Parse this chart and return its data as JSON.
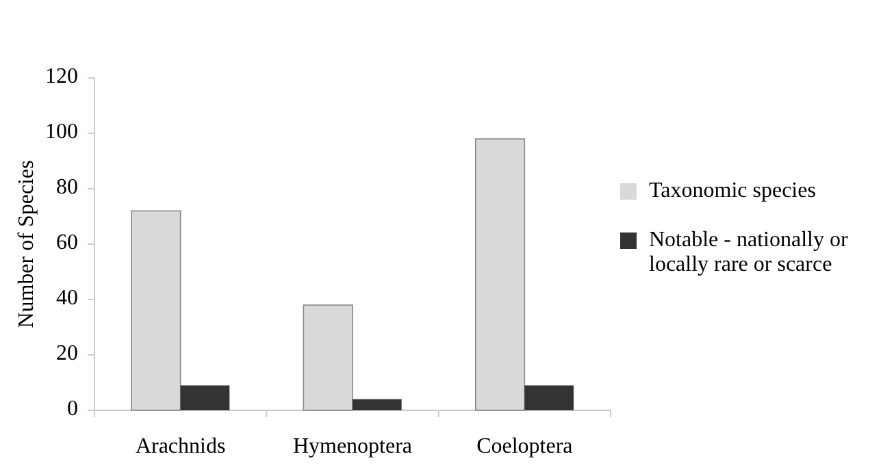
{
  "chart_data": {
    "type": "bar",
    "ylabel": "Number of Species",
    "categories": [
      "Arachnids",
      "Hymenoptera",
      "Coeloptera"
    ],
    "series": [
      {
        "name": "Taxonomic species",
        "color": "#d9d9d9",
        "values": [
          72,
          38,
          98
        ]
      },
      {
        "name": "Notable - nationally or locally rare or scarce",
        "color": "#333333",
        "values": [
          9,
          4,
          9
        ]
      }
    ],
    "ylim": [
      0,
      120
    ],
    "yticks": [
      0,
      20,
      40,
      60,
      80,
      100,
      120
    ],
    "grid": false,
    "legend": "right"
  }
}
